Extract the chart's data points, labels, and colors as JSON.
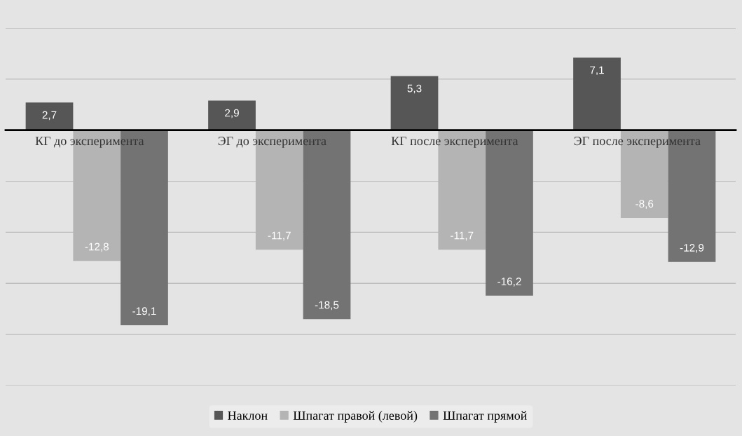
{
  "chart_data": {
    "type": "bar",
    "categories": [
      "КГ до эксперимента",
      "ЭГ до эксперимента",
      "КГ после эксперимента",
      "ЭГ после эксперимента"
    ],
    "series": [
      {
        "name": "Наклон",
        "color": "#565656",
        "values": [
          2.7,
          2.9,
          5.3,
          7.1
        ],
        "value_labels": [
          "2,7",
          "2,9",
          "5,3",
          "7,1"
        ]
      },
      {
        "name": "Шпагат правой (левой)",
        "color": "#b4b4b4",
        "values": [
          -12.8,
          -11.7,
          -11.7,
          -8.6
        ],
        "value_labels": [
          "-12,8",
          "-11,7",
          "-11,7",
          "-8,6"
        ]
      },
      {
        "name": "Шпагат прямой",
        "color": "#737373",
        "values": [
          -19.1,
          -18.5,
          -16.2,
          -12.9
        ],
        "value_labels": [
          "-19,1",
          "-18,5",
          "-16,2",
          "-12,9"
        ]
      }
    ],
    "ylim": [
      -25,
      10
    ],
    "yticks": [
      {
        "value": -25,
        "label": null
      },
      {
        "value": -20,
        "label": null
      },
      {
        "value": -15,
        "label": null
      },
      {
        "value": -10,
        "label": null
      },
      {
        "value": -5,
        "label": null
      },
      {
        "value": 0,
        "label": null
      },
      {
        "value": 5,
        "label": null
      },
      {
        "value": 10,
        "label": null
      }
    ],
    "grid": "y",
    "legend": "bottom",
    "tick_labels": "x"
  }
}
